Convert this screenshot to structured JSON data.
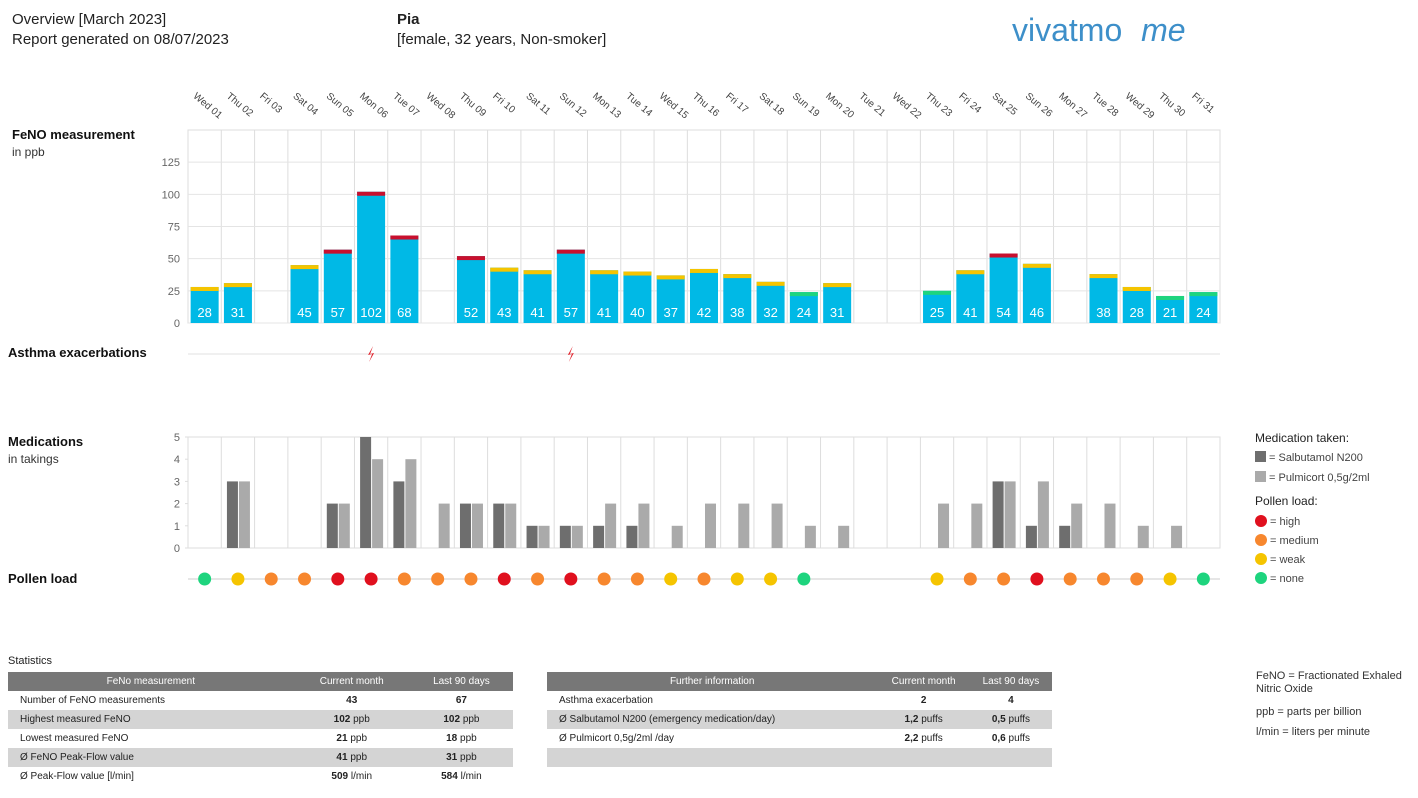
{
  "header": {
    "title": "Overview [March 2023]",
    "generated": "Report generated on 08/07/2023",
    "patient": "Pia",
    "patient_info": "[female, 32 years, Non-smoker]"
  },
  "logo": {
    "brand": "vivatmo",
    "suffix": "me"
  },
  "chart_data": [
    {
      "type": "bar",
      "title": "FeNO measurement",
      "subtitle": "in ppb",
      "categories": [
        "Wed 01",
        "Thu 02",
        "Fri 03",
        "Sat 04",
        "Sun 05",
        "Mon 06",
        "Tue 07",
        "Wed 08",
        "Thu 09",
        "Fri 10",
        "Sat 11",
        "Sun 12",
        "Mon 13",
        "Tue 14",
        "Wed 15",
        "Thu 16",
        "Fri 17",
        "Sat 18",
        "Sun 19",
        "Mon 20",
        "Tue 21",
        "Wed 22",
        "Thu 23",
        "Fri 24",
        "Sat 25",
        "Sun 26",
        "Mon 27",
        "Tue 28",
        "Wed 29",
        "Thu 30",
        "Fri 31"
      ],
      "values": [
        28,
        31,
        null,
        45,
        57,
        102,
        68,
        null,
        52,
        43,
        41,
        57,
        41,
        40,
        37,
        42,
        38,
        32,
        24,
        31,
        null,
        null,
        25,
        41,
        54,
        46,
        null,
        38,
        28,
        21,
        24
      ],
      "color": "#00b9e6",
      "cap_colors": [
        "#f5c400",
        "#f5c400",
        null,
        "#f5c400",
        "#c8102e",
        "#c8102e",
        "#c8102e",
        null,
        "#c8102e",
        "#f5c400",
        "#f5c400",
        "#c8102e",
        "#f5c400",
        "#f5c400",
        "#f5c400",
        "#f5c400",
        "#f5c400",
        "#f5c400",
        "#1ed47e",
        "#f5c400",
        null,
        null,
        "#1ed47e",
        "#f5c400",
        "#c8102e",
        "#f5c400",
        null,
        "#f5c400",
        "#f5c400",
        "#1ed47e",
        "#1ed47e"
      ],
      "ylim": [
        0,
        150
      ],
      "yticks": [
        0,
        25,
        50,
        75,
        100,
        125
      ],
      "grid": true
    },
    {
      "type": "event",
      "title": "Asthma exacerbations",
      "values": [
        null,
        null,
        null,
        null,
        null,
        1,
        null,
        null,
        null,
        null,
        null,
        1,
        null,
        null,
        null,
        null,
        null,
        null,
        null,
        null,
        null,
        null,
        null,
        null,
        null,
        null,
        null,
        null,
        null,
        null,
        null
      ],
      "color": "#e0202a"
    },
    {
      "type": "grouped_bar",
      "title": "Medications",
      "subtitle": "in takings",
      "legend_title": "Medication taken:",
      "series": [
        {
          "name": "= Salbutamol N200",
          "color": "#6e6e6e",
          "values": [
            null,
            3,
            null,
            null,
            2,
            5,
            3,
            null,
            2,
            2,
            1,
            1,
            1,
            1,
            null,
            null,
            null,
            null,
            null,
            null,
            null,
            null,
            null,
            null,
            3,
            1,
            1,
            null,
            null,
            null,
            null
          ]
        },
        {
          "name": "= Pulmicort 0,5g/2ml",
          "color": "#aaaaaa",
          "values": [
            null,
            3,
            null,
            null,
            2,
            4,
            4,
            2,
            2,
            2,
            1,
            1,
            2,
            2,
            1,
            2,
            2,
            2,
            1,
            1,
            null,
            null,
            2,
            2,
            3,
            3,
            2,
            2,
            1,
            1,
            null
          ]
        }
      ],
      "ylim": [
        0,
        5
      ],
      "yticks": [
        0,
        1,
        2,
        3,
        4,
        5
      ]
    },
    {
      "type": "dot",
      "title": "Pollen load",
      "legend_title": "Pollen load:",
      "values": [
        0,
        1,
        2,
        2,
        3,
        3,
        2,
        2,
        2,
        3,
        2,
        3,
        2,
        2,
        1,
        2,
        1,
        1,
        0,
        null,
        null,
        null,
        1,
        2,
        2,
        3,
        2,
        2,
        2,
        1,
        0
      ],
      "levels": [
        {
          "value": 3,
          "label": "= high",
          "color": "#e0101e"
        },
        {
          "value": 2,
          "label": "= medium",
          "color": "#f7872e"
        },
        {
          "value": 1,
          "label": "= weak",
          "color": "#f5c400"
        },
        {
          "value": 0,
          "label": "= none",
          "color": "#1ed47e"
        }
      ]
    }
  ],
  "statistics": {
    "title": "Statistics",
    "tables": [
      {
        "columns": [
          "FeNo measurement",
          "Current month",
          "Last 90 days"
        ],
        "rows": [
          [
            "Number of FeNO measurements",
            {
              "value": "43"
            },
            {
              "value": "67"
            }
          ],
          [
            "Highest measured FeNO",
            {
              "value": "102",
              "unit": "ppb"
            },
            {
              "value": "102",
              "unit": "ppb"
            }
          ],
          [
            "Lowest measured FeNO",
            {
              "value": "21",
              "unit": "ppb"
            },
            {
              "value": "18",
              "unit": "ppb"
            }
          ],
          [
            "Ø FeNO Peak-Flow value",
            {
              "value": "41",
              "unit": "ppb"
            },
            {
              "value": "31",
              "unit": "ppb"
            }
          ],
          [
            "Ø Peak-Flow value [l/min]",
            {
              "value": "509",
              "unit": "l/min"
            },
            {
              "value": "584",
              "unit": "l/min"
            }
          ]
        ]
      },
      {
        "columns": [
          "Further information",
          "Current month",
          "Last 90 days"
        ],
        "rows": [
          [
            "Asthma exacerbation",
            {
              "value": "2"
            },
            {
              "value": "4"
            }
          ],
          [
            "Ø Salbutamol N200 (emergency medication/day)",
            {
              "value": "1,2",
              "unit": "puffs"
            },
            {
              "value": "0,5",
              "unit": "puffs"
            }
          ],
          [
            "Ø Pulmicort 0,5g/2ml /day",
            {
              "value": "2,2",
              "unit": "puffs"
            },
            {
              "value": "0,6",
              "unit": "puffs"
            }
          ]
        ]
      }
    ]
  },
  "footnotes": [
    "FeNO = Fractionated Exhaled Nitric Oxide",
    "ppb = parts per billion",
    "l/min = liters per minute"
  ]
}
